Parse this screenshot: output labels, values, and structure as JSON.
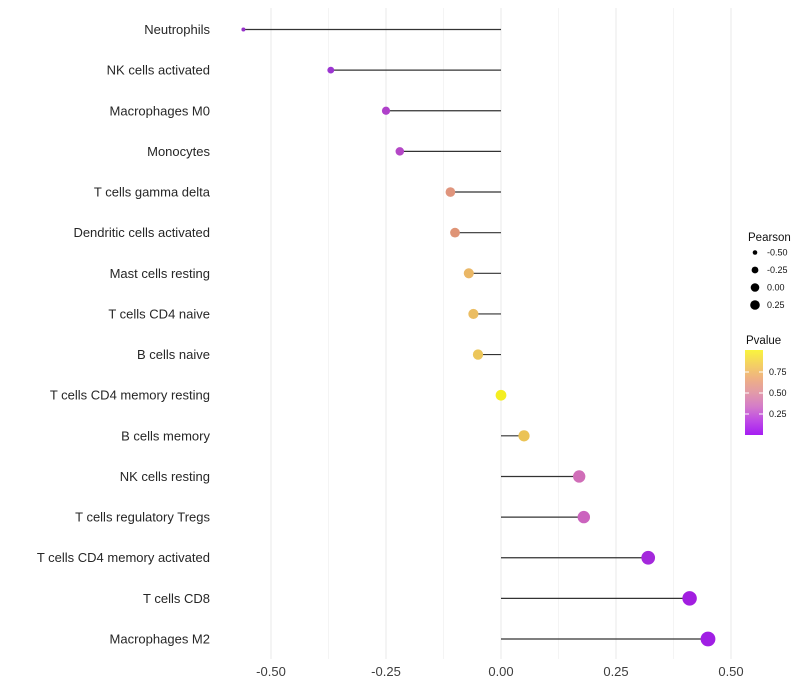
{
  "figure": {
    "background": "#ffffff"
  },
  "chart_data": {
    "type": "scatter",
    "variant": "horizontal-lollipop",
    "title": "",
    "xlabel": "",
    "ylabel": "",
    "categories": [
      "Neutrophils",
      "NK cells activated",
      "Macrophages M0",
      "Monocytes",
      "T cells gamma delta",
      "Dendritic cells activated",
      "Mast cells resting",
      "T cells CD4 naive",
      "B cells naive",
      "T cells CD4 memory resting",
      "B cells memory",
      "NK cells resting",
      "T cells regulatory  Tregs",
      "T cells CD4 memory activated",
      "T cells CD8",
      "Macrophages M2"
    ],
    "series": [
      {
        "name": "Pearson",
        "values": [
          -0.56,
          -0.37,
          -0.25,
          -0.22,
          -0.11,
          -0.1,
          -0.07,
          -0.06,
          -0.05,
          0.0,
          0.05,
          0.17,
          0.18,
          0.32,
          0.41,
          0.45
        ]
      }
    ],
    "point_colors": [
      "#9632C9",
      "#9C35D1",
      "#AF40CA",
      "#B447C6",
      "#E0957D",
      "#DF9476",
      "#EAB766",
      "#EBBD62",
      "#ECC65A",
      "#F4EE21",
      "#EBC355",
      "#D06EB8",
      "#CB63BE",
      "#A428DC",
      "#A21EE0",
      "#A01EE4"
    ],
    "x_tick_labels": [
      "-0.50",
      "-0.25",
      "0.00",
      "0.25",
      "0.50"
    ],
    "x_tick_values": [
      -0.5,
      -0.25,
      0,
      0.25,
      0.5
    ],
    "x_minor_tick_values": [
      -0.375,
      -0.125,
      0.125,
      0.375
    ],
    "xlim": [
      -0.615,
      0.51
    ],
    "grid": "vertical major and minor gridlines only, no axis lines",
    "stem_color": "#333333",
    "gridline_major_color": "#e8e8e8",
    "gridline_minor_color": "#f4f4f4",
    "axis_text_color": "#262626",
    "legend_position": "right",
    "legends": {
      "size": {
        "title": "Pearson",
        "labels": [
          "-0.50",
          "-0.25",
          "0.00",
          "0.25"
        ],
        "values": [
          -0.5,
          -0.25,
          0.0,
          0.25
        ],
        "dot_color": "#000000"
      },
      "color": {
        "title": "Pvalue",
        "tick_labels": [
          "0.75",
          "0.50",
          "0.25"
        ],
        "tick_values": [
          0.75,
          0.5,
          0.25
        ],
        "gradient_top_to_bottom": [
          "#F9F43E",
          "#F4D162",
          "#EFB183",
          "#E29BA8",
          "#D47CC9",
          "#BE4AE6",
          "#A51DF2"
        ]
      }
    }
  }
}
